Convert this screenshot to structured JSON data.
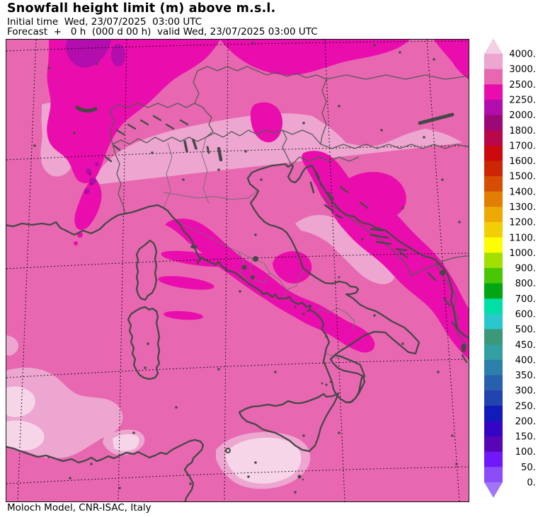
{
  "header": {
    "title": "Snowfall height limit (m) above m.s.l.",
    "initial_time_line": "Initial time  Wed, 23/07/2025  03:00 UTC",
    "forecast_line": "Forecast  +   0 h  (000 d 00 h)  valid Wed, 23/07/2025 03:00 UTC"
  },
  "footer": {
    "credit": "Moloch Model, CNR-ISAC, Italy"
  },
  "legend": {
    "unit": "m",
    "boundary_labels": [
      "4000.",
      "3000.",
      "2500.",
      "2250.",
      "2000.",
      "1800.",
      "1700.",
      "1600.",
      "1500.",
      "1400.",
      "1300.",
      "1200.",
      "1100.",
      "1000.",
      "900.",
      "800.",
      "700.",
      "600.",
      "500.",
      "450.",
      "400.",
      "350.",
      "300.",
      "250.",
      "200.",
      "150.",
      "100.",
      "50.",
      "0."
    ],
    "segment_colors": [
      "#eda6d0",
      "#e768b1",
      "#e90dad",
      "#b30dae",
      "#9c0878",
      "#b8084a",
      "#cc090c",
      "#cd2605",
      "#d54e04",
      "#e17e04",
      "#eda904",
      "#f2cf04",
      "#fdfe02",
      "#a2df03",
      "#49c606",
      "#02a512",
      "#01dfa7",
      "#2ac8cc",
      "#3b9879",
      "#32a0a2",
      "#2b80ab",
      "#2761ae",
      "#2343af",
      "#101bba",
      "#3505c5",
      "#5705b5",
      "#7018fa",
      "#8b4bf7"
    ],
    "arrow_top_color": "#f3cfe4",
    "arrow_bottom_color": "#a275f8"
  },
  "map": {
    "palette": {
      "base": "#e768b1",
      "light": "#eda6d0",
      "xlight": "#f6d5e9",
      "magenta": "#e90dad",
      "purple": "#b30dae",
      "darkmag": "#9c0878"
    },
    "line_colors": {
      "coast": "#474747",
      "border": "#585858",
      "graticule": "#000000"
    },
    "frame_color": "#141414"
  }
}
